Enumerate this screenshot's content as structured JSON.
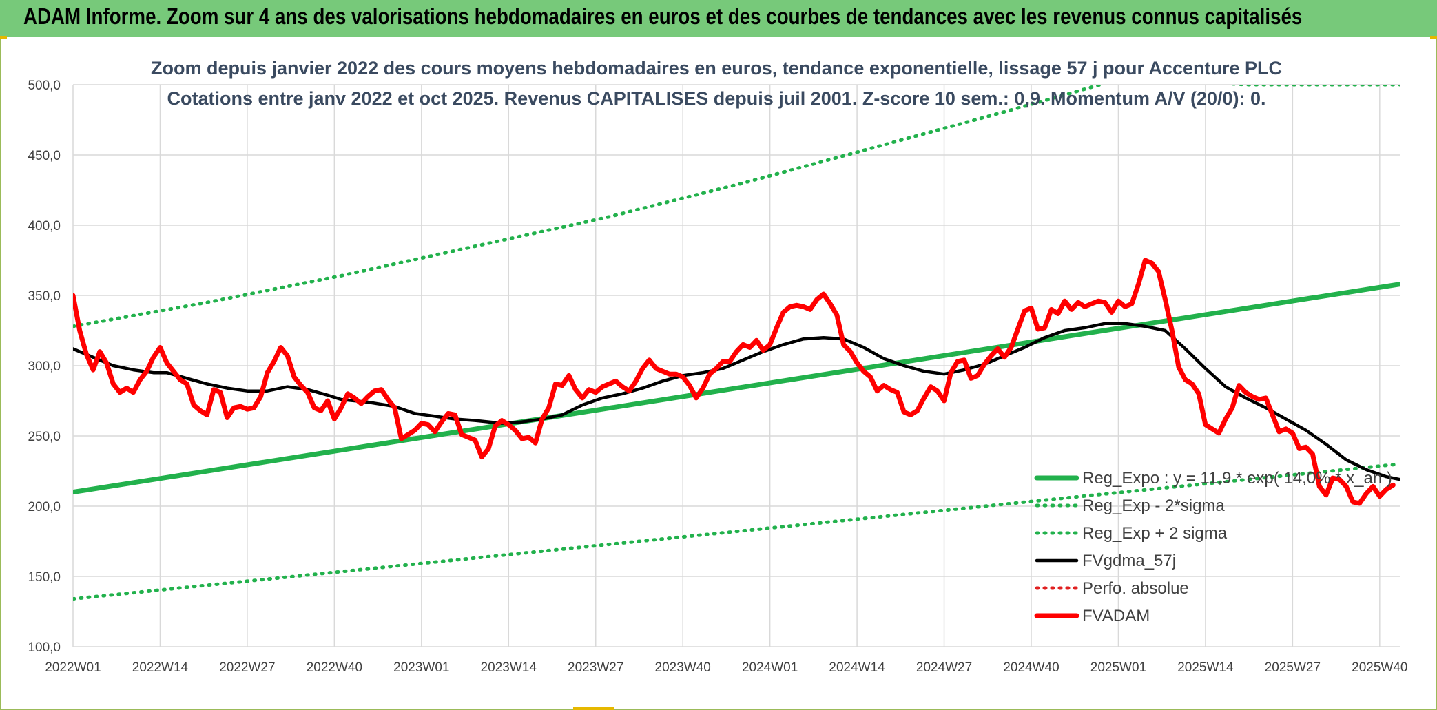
{
  "header": {
    "title": "ADAM Informe. Zoom sur 4 ans des valorisations hebdomadaires en euros et des courbes de tendances avec les revenus connus capitalisés"
  },
  "colors": {
    "header_bg": "#77c97a",
    "trend_green": "#22b14c",
    "band_green": "#22b14c",
    "gdma_black": "#000000",
    "fvadam_red": "#ff0000",
    "perfo_red": "#e02020",
    "grid": "#d9d9d9"
  },
  "chart_data": {
    "type": "line",
    "subtitle_line1": "Zoom depuis janvier 2022 des cours moyens hebdomadaires en euros, tendance exponentielle, lissage 57 j pour Accenture PLC",
    "subtitle_line2": "Cotations entre janv 2022 et oct 2025. Revenus CAPITALISES depuis juil 2001. Z-score 10 sem.: 0,9. Momentum A/V (20/0): 0.",
    "ylim": [
      100,
      500
    ],
    "yticks": [
      "100,0",
      "150,0",
      "200,0",
      "250,0",
      "300,0",
      "350,0",
      "400,0",
      "450,0",
      "500,0"
    ],
    "xlim": [
      0,
      198
    ],
    "xticks": [
      {
        "label": "2022W01",
        "x": 0
      },
      {
        "label": "2022W14",
        "x": 13
      },
      {
        "label": "2022W27",
        "x": 26
      },
      {
        "label": "2022W40",
        "x": 39
      },
      {
        "label": "2023W01",
        "x": 52
      },
      {
        "label": "2023W14",
        "x": 65
      },
      {
        "label": "2023W27",
        "x": 78
      },
      {
        "label": "2023W40",
        "x": 91
      },
      {
        "label": "2024W01",
        "x": 104
      },
      {
        "label": "2024W14",
        "x": 117
      },
      {
        "label": "2024W27",
        "x": 130
      },
      {
        "label": "2024W40",
        "x": 143
      },
      {
        "label": "2025W01",
        "x": 156
      },
      {
        "label": "2025W14",
        "x": 169
      },
      {
        "label": "2025W27",
        "x": 182
      },
      {
        "label": "2025W40",
        "x": 195
      }
    ],
    "grid": true,
    "legend_position": "bottom-right",
    "series": [
      {
        "name": "Reg_Expo : y = 11,9 * exp( 14,0% * x_an )",
        "style": "solid-thick",
        "color": "#22b14c",
        "points": [
          [
            0,
            210
          ],
          [
            198,
            358
          ]
        ]
      },
      {
        "name": "Reg_Exp - 2*sigma",
        "style": "dotted",
        "color": "#22b14c",
        "points": [
          [
            0,
            134
          ],
          [
            198,
            230
          ]
        ]
      },
      {
        "name": "Reg_Exp + 2 sigma",
        "style": "dotted",
        "color": "#22b14c",
        "points": [
          [
            0,
            328
          ],
          [
            20,
            345
          ],
          [
            40,
            364
          ],
          [
            60,
            385
          ],
          [
            80,
            406
          ],
          [
            100,
            430
          ],
          [
            117,
            452
          ],
          [
            140,
            482
          ],
          [
            157,
            505
          ],
          [
            175,
            500
          ],
          [
            198,
            500
          ]
        ]
      },
      {
        "name": "FVgdma_57j",
        "style": "solid",
        "color": "#000000",
        "points": [
          [
            0,
            312
          ],
          [
            3,
            306
          ],
          [
            6,
            300
          ],
          [
            9,
            297
          ],
          [
            12,
            295
          ],
          [
            14,
            295
          ],
          [
            17,
            291
          ],
          [
            20,
            287
          ],
          [
            23,
            284
          ],
          [
            26,
            282
          ],
          [
            29,
            282
          ],
          [
            32,
            285
          ],
          [
            35,
            283
          ],
          [
            38,
            279
          ],
          [
            40,
            276
          ],
          [
            44,
            274
          ],
          [
            48,
            271
          ],
          [
            51,
            266
          ],
          [
            54,
            264
          ],
          [
            57,
            262
          ],
          [
            60,
            261
          ],
          [
            64,
            259
          ],
          [
            67,
            260
          ],
          [
            70,
            262
          ],
          [
            73,
            265
          ],
          [
            76,
            272
          ],
          [
            79,
            277
          ],
          [
            82,
            280
          ],
          [
            85,
            284
          ],
          [
            88,
            289
          ],
          [
            91,
            293
          ],
          [
            94,
            295
          ],
          [
            97,
            298
          ],
          [
            100,
            304
          ],
          [
            103,
            310
          ],
          [
            106,
            315
          ],
          [
            109,
            319
          ],
          [
            112,
            320
          ],
          [
            115,
            319
          ],
          [
            118,
            313
          ],
          [
            121,
            305
          ],
          [
            124,
            300
          ],
          [
            127,
            296
          ],
          [
            130,
            294
          ],
          [
            133,
            297
          ],
          [
            136,
            301
          ],
          [
            139,
            307
          ],
          [
            142,
            313
          ],
          [
            145,
            320
          ],
          [
            148,
            325
          ],
          [
            151,
            327
          ],
          [
            154,
            330
          ],
          [
            157,
            330
          ],
          [
            160,
            328
          ],
          [
            163,
            325
          ],
          [
            166,
            312
          ],
          [
            169,
            298
          ],
          [
            172,
            285
          ],
          [
            175,
            277
          ],
          [
            178,
            270
          ],
          [
            181,
            262
          ],
          [
            184,
            254
          ],
          [
            187,
            244
          ],
          [
            190,
            233
          ],
          [
            193,
            226
          ],
          [
            196,
            221
          ],
          [
            198,
            219
          ]
        ]
      },
      {
        "name": "Perfo. absolue",
        "style": "dotted",
        "color": "#e02020",
        "points": []
      },
      {
        "name": "FVADAM",
        "style": "solid-thick",
        "color": "#ff0000",
        "points": [
          [
            0,
            350
          ],
          [
            1,
            325
          ],
          [
            2,
            308
          ],
          [
            3,
            297
          ],
          [
            4,
            310
          ],
          [
            5,
            302
          ],
          [
            6,
            287
          ],
          [
            7,
            281
          ],
          [
            8,
            284
          ],
          [
            9,
            281
          ],
          [
            10,
            290
          ],
          [
            11,
            296
          ],
          [
            12,
            306
          ],
          [
            13,
            313
          ],
          [
            14,
            302
          ],
          [
            15,
            296
          ],
          [
            16,
            290
          ],
          [
            17,
            287
          ],
          [
            18,
            272
          ],
          [
            19,
            268
          ],
          [
            20,
            265
          ],
          [
            21,
            283
          ],
          [
            22,
            281
          ],
          [
            23,
            263
          ],
          [
            24,
            270
          ],
          [
            25,
            271
          ],
          [
            26,
            269
          ],
          [
            27,
            270
          ],
          [
            28,
            278
          ],
          [
            29,
            295
          ],
          [
            30,
            303
          ],
          [
            31,
            313
          ],
          [
            32,
            307
          ],
          [
            33,
            292
          ],
          [
            34,
            286
          ],
          [
            35,
            281
          ],
          [
            36,
            270
          ],
          [
            37,
            268
          ],
          [
            38,
            275
          ],
          [
            39,
            262
          ],
          [
            40,
            270
          ],
          [
            41,
            280
          ],
          [
            42,
            277
          ],
          [
            43,
            273
          ],
          [
            44,
            278
          ],
          [
            45,
            282
          ],
          [
            46,
            283
          ],
          [
            47,
            276
          ],
          [
            48,
            270
          ],
          [
            49,
            248
          ],
          [
            50,
            251
          ],
          [
            51,
            254
          ],
          [
            52,
            259
          ],
          [
            53,
            258
          ],
          [
            54,
            253
          ],
          [
            55,
            260
          ],
          [
            56,
            266
          ],
          [
            57,
            265
          ],
          [
            58,
            251
          ],
          [
            59,
            249
          ],
          [
            60,
            247
          ],
          [
            61,
            235
          ],
          [
            62,
            241
          ],
          [
            63,
            257
          ],
          [
            64,
            261
          ],
          [
            65,
            258
          ],
          [
            66,
            254
          ],
          [
            67,
            248
          ],
          [
            68,
            249
          ],
          [
            69,
            245
          ],
          [
            70,
            262
          ],
          [
            71,
            270
          ],
          [
            72,
            287
          ],
          [
            73,
            286
          ],
          [
            74,
            293
          ],
          [
            75,
            283
          ],
          [
            76,
            277
          ],
          [
            77,
            283
          ],
          [
            78,
            281
          ],
          [
            79,
            285
          ],
          [
            80,
            287
          ],
          [
            81,
            289
          ],
          [
            82,
            285
          ],
          [
            83,
            282
          ],
          [
            84,
            289
          ],
          [
            85,
            298
          ],
          [
            86,
            304
          ],
          [
            87,
            298
          ],
          [
            88,
            296
          ],
          [
            89,
            294
          ],
          [
            90,
            294
          ],
          [
            91,
            292
          ],
          [
            92,
            286
          ],
          [
            93,
            277
          ],
          [
            94,
            284
          ],
          [
            95,
            294
          ],
          [
            96,
            298
          ],
          [
            97,
            303
          ],
          [
            98,
            303
          ],
          [
            99,
            310
          ],
          [
            100,
            315
          ],
          [
            101,
            313
          ],
          [
            102,
            318
          ],
          [
            103,
            311
          ],
          [
            104,
            315
          ],
          [
            105,
            327
          ],
          [
            106,
            338
          ],
          [
            107,
            342
          ],
          [
            108,
            343
          ],
          [
            109,
            342
          ],
          [
            110,
            340
          ],
          [
            111,
            347
          ],
          [
            112,
            351
          ],
          [
            113,
            344
          ],
          [
            114,
            336
          ],
          [
            115,
            315
          ],
          [
            116,
            310
          ],
          [
            117,
            302
          ],
          [
            118,
            296
          ],
          [
            119,
            292
          ],
          [
            120,
            282
          ],
          [
            121,
            286
          ],
          [
            122,
            283
          ],
          [
            123,
            281
          ],
          [
            124,
            267
          ],
          [
            125,
            265
          ],
          [
            126,
            268
          ],
          [
            127,
            277
          ],
          [
            128,
            285
          ],
          [
            129,
            282
          ],
          [
            130,
            275
          ],
          [
            131,
            295
          ],
          [
            132,
            303
          ],
          [
            133,
            304
          ],
          [
            134,
            291
          ],
          [
            135,
            293
          ],
          [
            136,
            301
          ],
          [
            137,
            307
          ],
          [
            138,
            312
          ],
          [
            139,
            306
          ],
          [
            140,
            313
          ],
          [
            141,
            326
          ],
          [
            142,
            339
          ],
          [
            143,
            341
          ],
          [
            144,
            326
          ],
          [
            145,
            327
          ],
          [
            146,
            340
          ],
          [
            147,
            337
          ],
          [
            148,
            346
          ],
          [
            149,
            340
          ],
          [
            150,
            345
          ],
          [
            151,
            342
          ],
          [
            152,
            344
          ],
          [
            153,
            346
          ],
          [
            154,
            345
          ],
          [
            155,
            338
          ],
          [
            156,
            346
          ],
          [
            157,
            342
          ],
          [
            158,
            344
          ],
          [
            159,
            358
          ],
          [
            160,
            375
          ],
          [
            161,
            373
          ],
          [
            162,
            367
          ],
          [
            163,
            347
          ],
          [
            164,
            325
          ],
          [
            165,
            299
          ],
          [
            166,
            290
          ],
          [
            167,
            287
          ],
          [
            168,
            280
          ],
          [
            169,
            258
          ],
          [
            170,
            255
          ],
          [
            171,
            252
          ],
          [
            172,
            262
          ],
          [
            173,
            270
          ],
          [
            174,
            286
          ],
          [
            175,
            281
          ],
          [
            176,
            278
          ],
          [
            177,
            276
          ],
          [
            178,
            277
          ],
          [
            179,
            265
          ],
          [
            180,
            253
          ],
          [
            181,
            255
          ],
          [
            182,
            252
          ],
          [
            183,
            241
          ],
          [
            184,
            242
          ],
          [
            185,
            237
          ],
          [
            186,
            214
          ],
          [
            187,
            208
          ],
          [
            188,
            220
          ],
          [
            189,
            219
          ],
          [
            190,
            214
          ],
          [
            191,
            203
          ],
          [
            192,
            202
          ],
          [
            193,
            209
          ],
          [
            194,
            214
          ],
          [
            195,
            207
          ],
          [
            196,
            212
          ],
          [
            197,
            215
          ]
        ]
      }
    ]
  }
}
